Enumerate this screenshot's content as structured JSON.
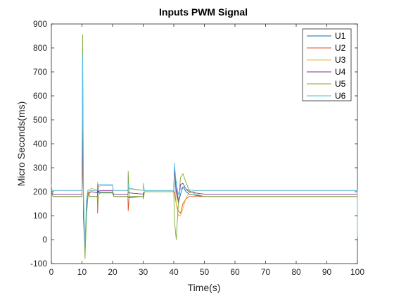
{
  "chart_data": {
    "type": "line",
    "title": "Inputs PWM  Signal",
    "xlabel": "Time(s)",
    "ylabel": "Micro Seconds(ms)",
    "xlim": [
      0,
      100
    ],
    "ylim": [
      -100,
      900
    ],
    "xticks": [
      0,
      10,
      20,
      30,
      40,
      50,
      60,
      70,
      80,
      90,
      100
    ],
    "yticks": [
      -100,
      0,
      100,
      200,
      300,
      400,
      500,
      600,
      700,
      800,
      900
    ],
    "grid": false,
    "legend": "top-right",
    "series": [
      {
        "name": "U1",
        "color": "#0072bd",
        "x": [
          0,
          0.2,
          0.6,
          10,
          10.2,
          10.5,
          11,
          11.5,
          12,
          12.5,
          13,
          14,
          15,
          15.1,
          15.4,
          16,
          20,
          20.1,
          20.4,
          25,
          25.1,
          25.4,
          30,
          30.1,
          30.4,
          40,
          40.2,
          40.8,
          41.5,
          42.2,
          43,
          44,
          45,
          47,
          50,
          100,
          100.0
        ],
        "y": [
          205,
          190,
          180,
          180,
          560,
          100,
          -20,
          120,
          190,
          180,
          180,
          180,
          180,
          205,
          195,
          198,
          198,
          190,
          180,
          180,
          175,
          180,
          180,
          190,
          200,
          200,
          280,
          240,
          150,
          190,
          220,
          200,
          190,
          185,
          180,
          180,
          10
        ]
      },
      {
        "name": "U2",
        "color": "#d95319",
        "x": [
          0,
          0.2,
          0.6,
          10,
          10.2,
          10.5,
          11,
          11.5,
          12,
          12.5,
          13,
          14,
          15,
          15.1,
          15.4,
          16,
          20,
          20.1,
          20.4,
          25,
          25.1,
          25.4,
          30,
          30.1,
          30.4,
          40,
          40.2,
          40.8,
          41.5,
          42.2,
          43,
          44,
          45,
          47,
          50,
          100,
          100.0
        ],
        "y": [
          205,
          190,
          180,
          180,
          500,
          80,
          -50,
          140,
          200,
          180,
          180,
          180,
          180,
          110,
          190,
          195,
          195,
          200,
          180,
          180,
          120,
          175,
          180,
          170,
          200,
          200,
          200,
          150,
          120,
          110,
          150,
          170,
          180,
          180,
          180,
          180,
          10
        ]
      },
      {
        "name": "U3",
        "color": "#edb120",
        "x": [
          0,
          0.2,
          0.6,
          10,
          10.2,
          10.5,
          11,
          11.5,
          12,
          12.5,
          13,
          14,
          15,
          15.1,
          15.4,
          16,
          20,
          20.1,
          20.4,
          25,
          25.1,
          25.4,
          30,
          30.1,
          30.4,
          40,
          40.2,
          40.8,
          41.5,
          42.2,
          43,
          44,
          45,
          47,
          50,
          100,
          100.0
        ],
        "y": [
          205,
          205,
          205,
          205,
          520,
          150,
          -40,
          150,
          190,
          200,
          215,
          210,
          205,
          240,
          220,
          225,
          225,
          215,
          205,
          205,
          220,
          210,
          205,
          210,
          205,
          205,
          305,
          150,
          100,
          100,
          130,
          175,
          195,
          205,
          205,
          205,
          10
        ]
      },
      {
        "name": "U4",
        "color": "#7e2f8e",
        "x": [
          0,
          0.2,
          0.6,
          10,
          10.2,
          10.5,
          11,
          11.5,
          12,
          12.5,
          13,
          14,
          15,
          15.1,
          15.4,
          16,
          20,
          20.1,
          20.4,
          25,
          25.1,
          25.4,
          30,
          30.1,
          30.4,
          40,
          40.2,
          40.8,
          41.5,
          42.2,
          43,
          44,
          45,
          47,
          50,
          100,
          100.0
        ],
        "y": [
          205,
          195,
          190,
          190,
          540,
          120,
          -30,
          130,
          185,
          195,
          200,
          198,
          195,
          230,
          200,
          205,
          205,
          195,
          190,
          190,
          200,
          195,
          190,
          195,
          200,
          200,
          300,
          200,
          160,
          230,
          235,
          210,
          200,
          195,
          190,
          190,
          10
        ]
      },
      {
        "name": "U5",
        "color": "#77ac30",
        "x": [
          0,
          0.2,
          0.6,
          10,
          10.2,
          10.5,
          11,
          11.5,
          12,
          12.5,
          13,
          14,
          15,
          15.1,
          15.4,
          16,
          20,
          20.1,
          20.4,
          25,
          25.1,
          25.4,
          30,
          30.1,
          30.4,
          40,
          40.2,
          40.8,
          41.5,
          42.2,
          43,
          44,
          45,
          47,
          50,
          100,
          100.0
        ],
        "y": [
          205,
          190,
          180,
          180,
          855,
          200,
          -80,
          100,
          190,
          180,
          180,
          180,
          180,
          130,
          190,
          195,
          195,
          200,
          180,
          180,
          285,
          180,
          180,
          175,
          200,
          200,
          80,
          0,
          150,
          260,
          275,
          240,
          205,
          190,
          180,
          180,
          10
        ]
      },
      {
        "name": "U6",
        "color": "#4dbeee",
        "x": [
          0,
          0.2,
          0.6,
          10,
          10.2,
          10.5,
          11,
          11.5,
          12,
          12.5,
          13,
          14,
          15,
          15.1,
          15.4,
          16,
          20,
          20.1,
          20.4,
          25,
          25.1,
          25.4,
          30,
          30.1,
          30.4,
          40,
          40.2,
          40.8,
          41.5,
          42.2,
          43,
          44,
          45,
          47,
          50,
          100,
          100.0
        ],
        "y": [
          230,
          205,
          205,
          205,
          770,
          160,
          -20,
          170,
          210,
          205,
          205,
          205,
          205,
          230,
          230,
          230,
          230,
          210,
          205,
          205,
          235,
          215,
          205,
          235,
          205,
          205,
          320,
          230,
          190,
          210,
          220,
          212,
          208,
          205,
          205,
          205,
          10
        ]
      }
    ]
  }
}
